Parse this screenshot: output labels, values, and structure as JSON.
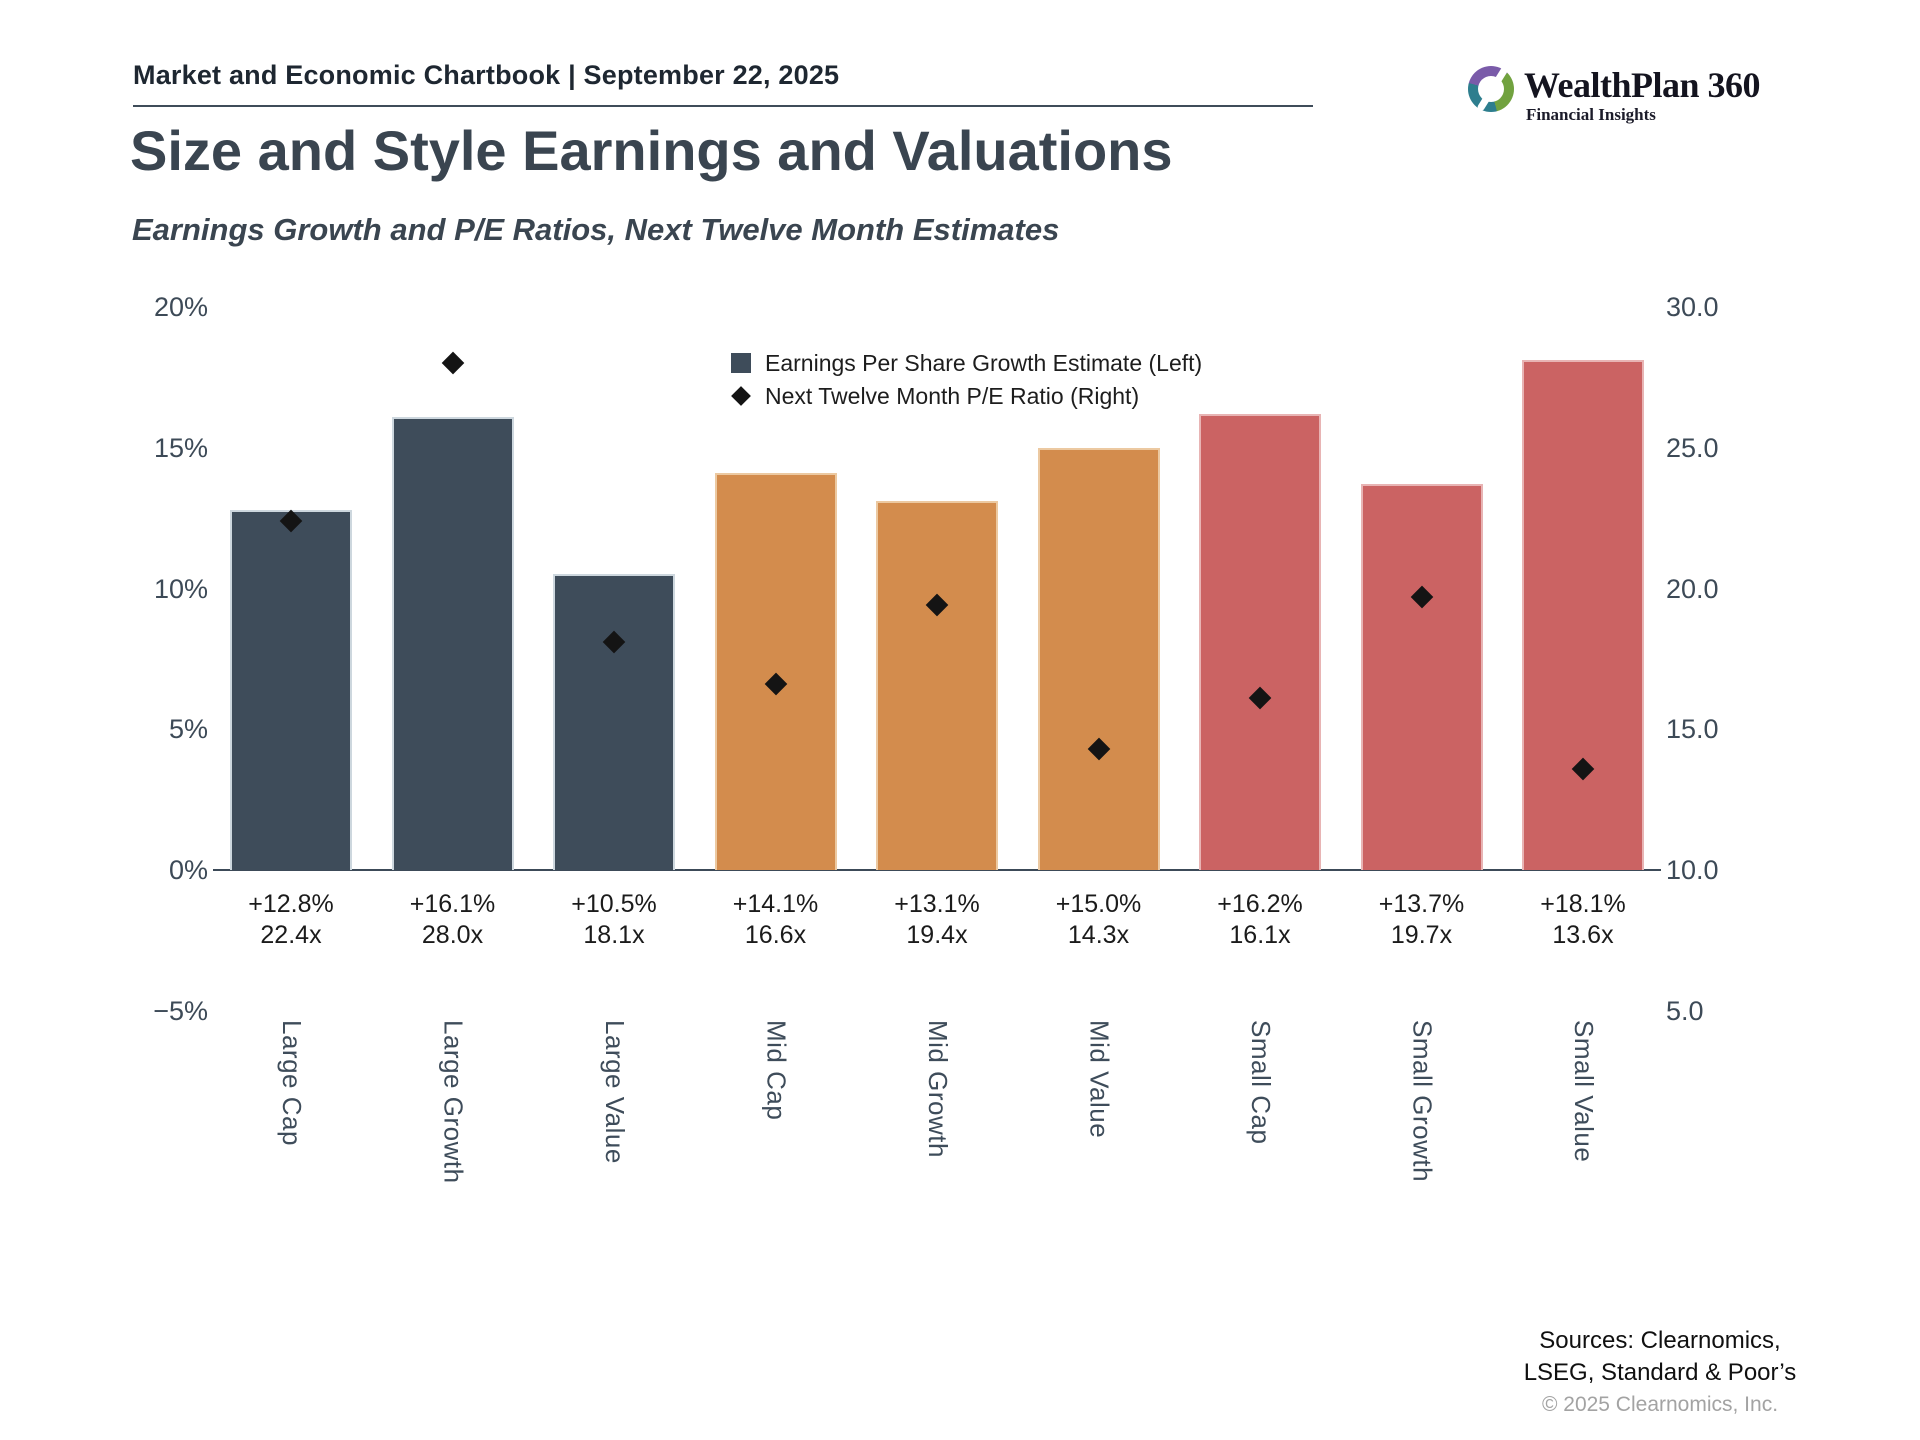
{
  "header": {
    "chartbook_title": "Market and Economic Chartbook | September 22, 2025"
  },
  "logo": {
    "name": "WealthPlan 360",
    "tagline": "Financial Insights",
    "icon": "swirl-circle-icon",
    "colors": {
      "purple": "#7a5ba9",
      "green": "#71a23f",
      "teal": "#2e7e8e"
    }
  },
  "title": "Size and Style Earnings and Valuations",
  "subtitle": "Earnings Growth and P/E Ratios, Next Twelve Month Estimates",
  "legend": {
    "eps_label": "Earnings Per Share Growth Estimate (Left)",
    "pe_label": "Next Twelve Month P/E Ratio (Right)"
  },
  "chart_data": {
    "type": "bar",
    "title": "Size and Style Earnings and Valuations",
    "subtitle": "Earnings Growth and P/E Ratios, Next Twelve Month Estimates",
    "categories": [
      "Large Cap",
      "Large Growth",
      "Large Value",
      "Mid Cap",
      "Mid Growth",
      "Mid Value",
      "Small Cap",
      "Small Growth",
      "Small Value"
    ],
    "series": [
      {
        "name": "Earnings Per Share Growth Estimate (Left)",
        "type": "bar",
        "axis": "left",
        "values": [
          12.8,
          16.1,
          10.5,
          14.1,
          13.1,
          15.0,
          16.2,
          13.7,
          18.1
        ],
        "labels": [
          "+12.8%",
          "+16.1%",
          "+10.5%",
          "+14.1%",
          "+13.1%",
          "+15.0%",
          "+16.2%",
          "+13.7%",
          "+18.1%"
        ]
      },
      {
        "name": "Next Twelve Month P/E Ratio (Right)",
        "type": "scatter-diamond",
        "axis": "right",
        "values": [
          22.4,
          28.0,
          18.1,
          16.6,
          19.4,
          14.3,
          16.1,
          19.7,
          13.6
        ],
        "labels": [
          "22.4x",
          "28.0x",
          "18.1x",
          "16.6x",
          "19.4x",
          "14.3x",
          "16.1x",
          "19.7x",
          "13.6x"
        ]
      }
    ],
    "bar_colors": [
      "#3e4c5a",
      "#3e4c5a",
      "#3e4c5a",
      "#d38c4d",
      "#d38c4d",
      "#d38c4d",
      "#cb6363",
      "#cb6363",
      "#cb6363"
    ],
    "bar_edge_colors": [
      "#cdd7de",
      "#cdd7de",
      "#cdd7de",
      "#ecc9a1",
      "#ecc9a1",
      "#ecc9a1",
      "#e8b4b4",
      "#e8b4b4",
      "#e8b4b4"
    ],
    "diamond_color": "#141414",
    "left_axis": {
      "range": [
        -5,
        20
      ],
      "tick_values": [
        20,
        15,
        10,
        5,
        0,
        -5
      ],
      "tick_labels": [
        "20%",
        "15%",
        "10%",
        "5%",
        "0%",
        "−5%"
      ]
    },
    "right_axis": {
      "range": [
        5,
        30
      ],
      "tick_values": [
        30,
        25,
        20,
        15,
        10,
        5
      ],
      "tick_labels": [
        "30.0",
        "25.0",
        "20.0",
        "15.0",
        "10.0",
        "5.0"
      ]
    },
    "grid": false,
    "legend_position": "upper center"
  },
  "footer": {
    "sources_line1": "Sources: Clearnomics,",
    "sources_line2": "LSEG, Standard & Poor’s",
    "copyright": "© 2025 Clearnomics, Inc."
  }
}
